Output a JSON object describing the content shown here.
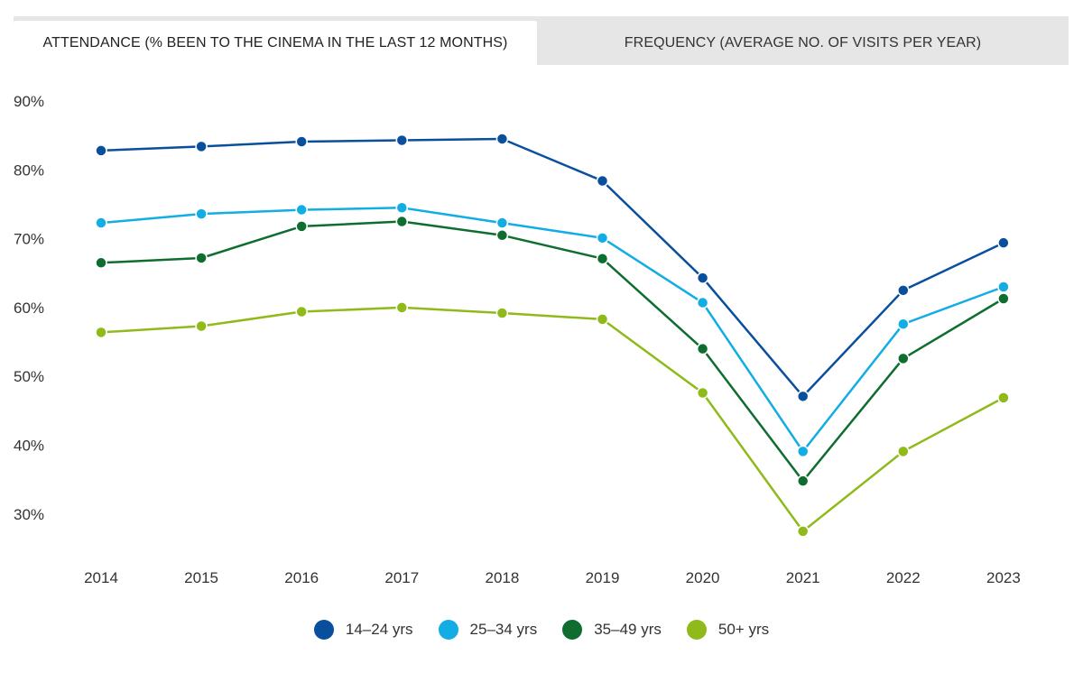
{
  "tabs": [
    {
      "label": "ATTENDANCE (% BEEN TO THE CINEMA IN THE LAST 12 MONTHS)",
      "active": true
    },
    {
      "label": "FREQUENCY (AVERAGE NO. OF VISITS PER YEAR)",
      "active": false
    }
  ],
  "chart_data": {
    "type": "line",
    "title": "",
    "xlabel": "",
    "ylabel": "",
    "x": [
      "2014",
      "2015",
      "2016",
      "2017",
      "2018",
      "2019",
      "2020",
      "2021",
      "2022",
      "2023"
    ],
    "ylim": [
      25,
      90
    ],
    "y_ticks": [
      30,
      40,
      50,
      60,
      70,
      80,
      90
    ],
    "y_tick_labels": [
      "30%",
      "40%",
      "50%",
      "60%",
      "70%",
      "80%",
      "90%"
    ],
    "grid": false,
    "legend_position": "bottom-center",
    "series": [
      {
        "name": "14–24 yrs",
        "color": "#0a4f9e",
        "values": [
          82.8,
          83.4,
          84.1,
          84.3,
          84.5,
          78.4,
          64.3,
          47.1,
          62.5,
          69.4
        ]
      },
      {
        "name": "25–34 yrs",
        "color": "#11ade4",
        "values": [
          72.3,
          73.6,
          74.2,
          74.5,
          72.3,
          70.1,
          60.7,
          39.1,
          57.6,
          63.0
        ]
      },
      {
        "name": "35–49 yrs",
        "color": "#0f6e2f",
        "values": [
          66.5,
          67.2,
          71.8,
          72.5,
          70.5,
          67.1,
          54.0,
          34.8,
          52.6,
          61.3
        ]
      },
      {
        "name": "50+ yrs",
        "color": "#8fba1a",
        "values": [
          56.4,
          57.3,
          59.4,
          60.0,
          59.2,
          58.3,
          47.6,
          27.5,
          39.1,
          46.9
        ]
      }
    ]
  }
}
